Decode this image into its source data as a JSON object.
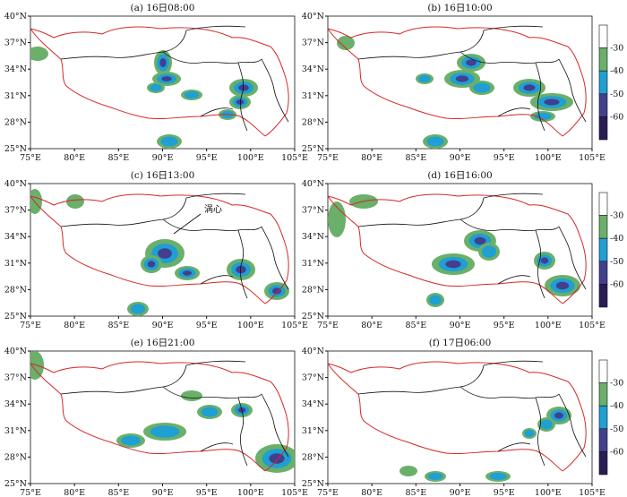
{
  "panels": [
    {
      "title": "(a) 16日08:00",
      "annotation": ""
    },
    {
      "title": "(b) 16日10:00",
      "annotation": ""
    },
    {
      "title": "(c) 16日13:00",
      "annotation": "涡心"
    },
    {
      "title": "(d) 16日16:00",
      "annotation": ""
    },
    {
      "title": "(e) 16日21:00",
      "annotation": ""
    },
    {
      "title": "(f) 17日06:00",
      "annotation": ""
    }
  ],
  "x_ticks": [
    "75°E",
    "80°E",
    "85°E",
    "90°E",
    "95°E",
    "100°E",
    "105°E"
  ],
  "y_ticks": [
    "25°N",
    "28°N",
    "31°N",
    "34°N",
    "37°N",
    "40°N"
  ],
  "colorbar": {
    "labels": [
      "-30",
      "-40",
      "-50",
      "-60"
    ],
    "colors": [
      "#ffffff",
      "#6aaf6a",
      "#1f9fd2",
      "#433f8f",
      "#2a1c55"
    ]
  },
  "map_extent": {
    "lon": [
      75,
      105
    ],
    "lat": [
      25,
      40
    ]
  },
  "colors": {
    "plateau_boundary": "#d62728",
    "admin_boundary": "#111111"
  }
}
